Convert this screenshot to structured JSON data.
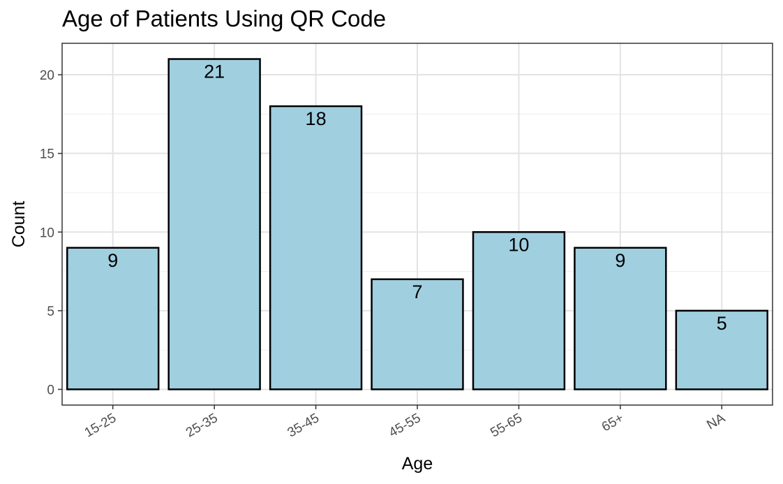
{
  "chart_data": {
    "type": "bar",
    "title": "Age of Patients Using QR Code",
    "xlabel": "Age",
    "ylabel": "Count",
    "categories": [
      "15-25",
      "25-35",
      "35-45",
      "45-55",
      "55-65",
      "65+",
      "NA"
    ],
    "values": [
      9,
      21,
      18,
      7,
      10,
      9,
      5
    ],
    "data_labels": [
      "9",
      "21",
      "18",
      "7",
      "10",
      "9",
      "5"
    ],
    "y_ticks": [
      0,
      5,
      10,
      15,
      20
    ],
    "ylim": [
      -1,
      22
    ],
    "grid": true,
    "bar_fill": "#a0cfe0",
    "bar_stroke": "#000000"
  }
}
